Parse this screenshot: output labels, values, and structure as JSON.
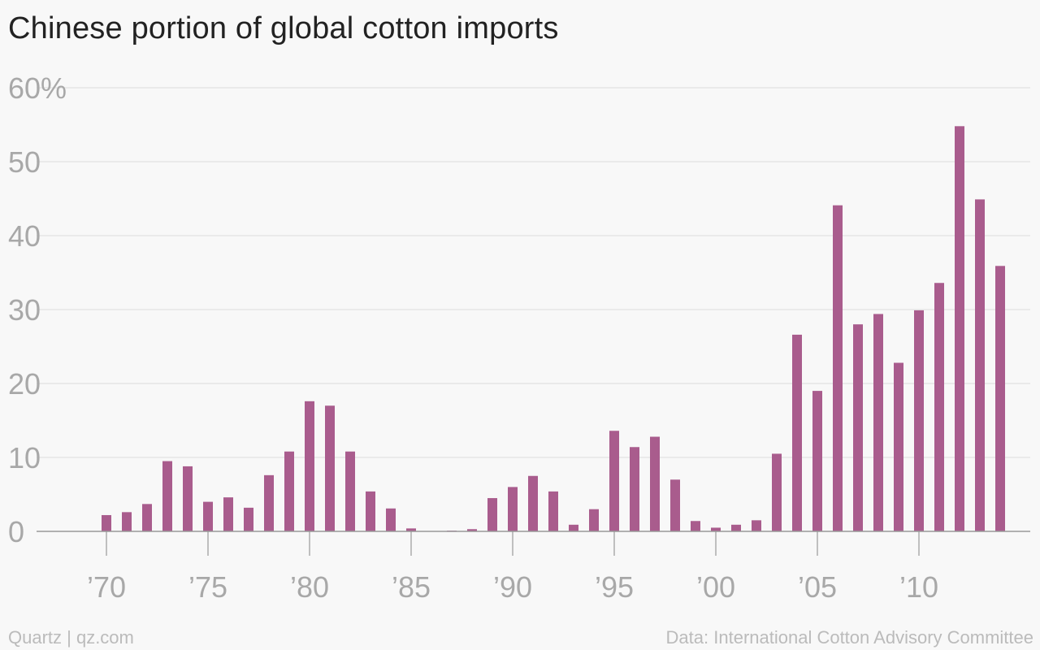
{
  "header": {
    "title": "Chinese portion of global cotton imports"
  },
  "footer": {
    "left": "Quartz | qz.com",
    "right": "Data: International Cotton Advisory Committee"
  },
  "colors": {
    "bar": "#a95c8d",
    "grid": "#e6e6e6",
    "axis": "#999999",
    "tick_text": "#a8a8a8",
    "background": "#f8f8f8"
  },
  "chart_data": {
    "type": "bar",
    "title": "Chinese portion of global cotton imports",
    "xlabel": "",
    "ylabel": "",
    "ylim": [
      0,
      60
    ],
    "y_ticks": [
      0,
      10,
      20,
      30,
      40,
      50,
      60
    ],
    "y_tick_labels": [
      "0",
      "10",
      "20",
      "30",
      "40",
      "50",
      "60%"
    ],
    "x_tick_labels": [
      "’70",
      "’75",
      "’80",
      "’85",
      "’90",
      "’95",
      "’00",
      "’05",
      "’10"
    ],
    "x_tick_years": [
      1970,
      1975,
      1980,
      1985,
      1990,
      1995,
      2000,
      2005,
      2010
    ],
    "grid": true,
    "categories": [
      1970,
      1971,
      1972,
      1973,
      1974,
      1975,
      1976,
      1977,
      1978,
      1979,
      1980,
      1981,
      1982,
      1983,
      1984,
      1985,
      1986,
      1987,
      1988,
      1989,
      1990,
      1991,
      1992,
      1993,
      1994,
      1995,
      1996,
      1997,
      1998,
      1999,
      2000,
      2001,
      2002,
      2003,
      2004,
      2005,
      2006,
      2007,
      2008,
      2009,
      2010,
      2011,
      2012,
      2013,
      2014
    ],
    "values": [
      2.2,
      2.6,
      3.7,
      9.5,
      8.8,
      4.0,
      4.6,
      3.2,
      7.6,
      10.8,
      17.6,
      17.0,
      10.8,
      5.4,
      3.1,
      0.4,
      0.0,
      0.1,
      0.3,
      4.5,
      6.0,
      7.5,
      5.4,
      0.9,
      3.0,
      13.6,
      11.4,
      12.8,
      7.0,
      1.4,
      0.5,
      0.9,
      1.5,
      10.5,
      26.6,
      19.0,
      44.1,
      28.0,
      29.4,
      22.8,
      29.9,
      33.6,
      54.8,
      44.9,
      35.9
    ]
  }
}
